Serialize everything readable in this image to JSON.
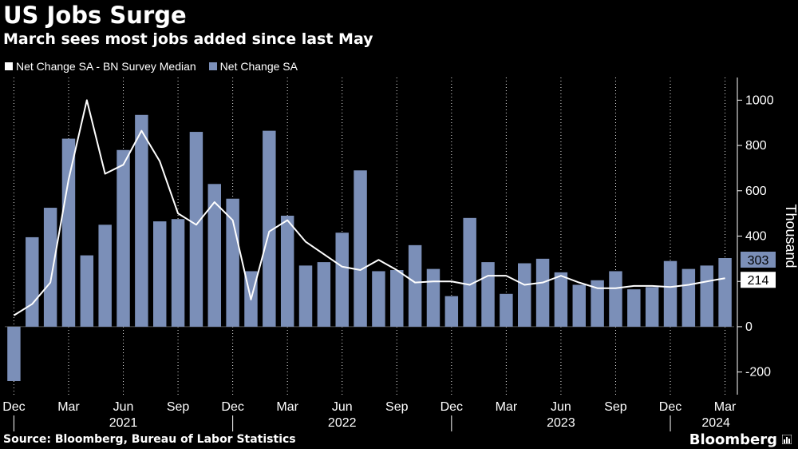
{
  "colors": {
    "background": "#000000",
    "bar": "#7b8fb8",
    "line": "#ffffff",
    "grid": "#ffffff"
  },
  "header": {
    "title": "US Jobs Surge",
    "subtitle": "March sees most jobs added since last May"
  },
  "footer": {
    "source": "Source: Bloomberg, Bureau of Labor Statistics",
    "brand": "Bloomberg",
    "brand_icon": "bar-chart-icon"
  },
  "chart_data": {
    "type": "bar",
    "title": "US Jobs Surge",
    "subtitle": "March sees most jobs added since last May",
    "ylabel": "Thousand",
    "ylim": [
      -300,
      1100
    ],
    "yticks": [
      -200,
      0,
      200,
      400,
      600,
      800,
      1000
    ],
    "y_axis_side": "right",
    "grid": {
      "vertical": true,
      "horizontal": false
    },
    "legend_position": "top-left",
    "x": [
      "2020-12",
      "2021-01",
      "2021-02",
      "2021-03",
      "2021-04",
      "2021-05",
      "2021-06",
      "2021-07",
      "2021-08",
      "2021-09",
      "2021-10",
      "2021-11",
      "2021-12",
      "2022-01",
      "2022-02",
      "2022-03",
      "2022-04",
      "2022-05",
      "2022-06",
      "2022-07",
      "2022-08",
      "2022-09",
      "2022-10",
      "2022-11",
      "2022-12",
      "2023-01",
      "2023-02",
      "2023-03",
      "2023-04",
      "2023-05",
      "2023-06",
      "2023-07",
      "2023-08",
      "2023-09",
      "2023-10",
      "2023-11",
      "2023-12",
      "2024-01",
      "2024-02",
      "2024-03"
    ],
    "month_labels": [
      {
        "index": 0,
        "label": "Dec"
      },
      {
        "index": 3,
        "label": "Mar"
      },
      {
        "index": 6,
        "label": "Jun"
      },
      {
        "index": 9,
        "label": "Sep"
      },
      {
        "index": 12,
        "label": "Dec"
      },
      {
        "index": 15,
        "label": "Mar"
      },
      {
        "index": 18,
        "label": "Jun"
      },
      {
        "index": 21,
        "label": "Sep"
      },
      {
        "index": 24,
        "label": "Dec"
      },
      {
        "index": 27,
        "label": "Mar"
      },
      {
        "index": 30,
        "label": "Jun"
      },
      {
        "index": 33,
        "label": "Sep"
      },
      {
        "index": 36,
        "label": "Dec"
      },
      {
        "index": 39,
        "label": "Mar"
      }
    ],
    "year_labels": [
      {
        "center": 6,
        "label": "2021"
      },
      {
        "center": 18,
        "label": "2022"
      },
      {
        "center": 30,
        "label": "2023"
      },
      {
        "center": 38.5,
        "label": "2024"
      }
    ],
    "year_separators": [
      0,
      12,
      24,
      36
    ],
    "series": [
      {
        "name": "Net Change SA - BN Survey Median",
        "type": "line",
        "values": [
          50,
          100,
          195,
          650,
          1000,
          675,
          715,
          865,
          730,
          500,
          450,
          550,
          470,
          120,
          420,
          470,
          375,
          320,
          265,
          250,
          295,
          250,
          195,
          200,
          200,
          185,
          225,
          225,
          185,
          195,
          225,
          195,
          170,
          170,
          180,
          180,
          175,
          185,
          200,
          214
        ]
      },
      {
        "name": "Net Change SA",
        "type": "bar",
        "values": [
          -240,
          395,
          525,
          830,
          315,
          450,
          780,
          935,
          465,
          475,
          860,
          630,
          565,
          245,
          865,
          490,
          270,
          285,
          415,
          690,
          245,
          250,
          360,
          255,
          135,
          480,
          285,
          145,
          280,
          300,
          240,
          185,
          205,
          245,
          165,
          175,
          290,
          255,
          270,
          303
        ]
      }
    ],
    "last_value_labels": [
      {
        "series": "Net Change SA",
        "value": "303"
      },
      {
        "series": "Net Change SA - BN Survey Median",
        "value": "214"
      }
    ]
  }
}
